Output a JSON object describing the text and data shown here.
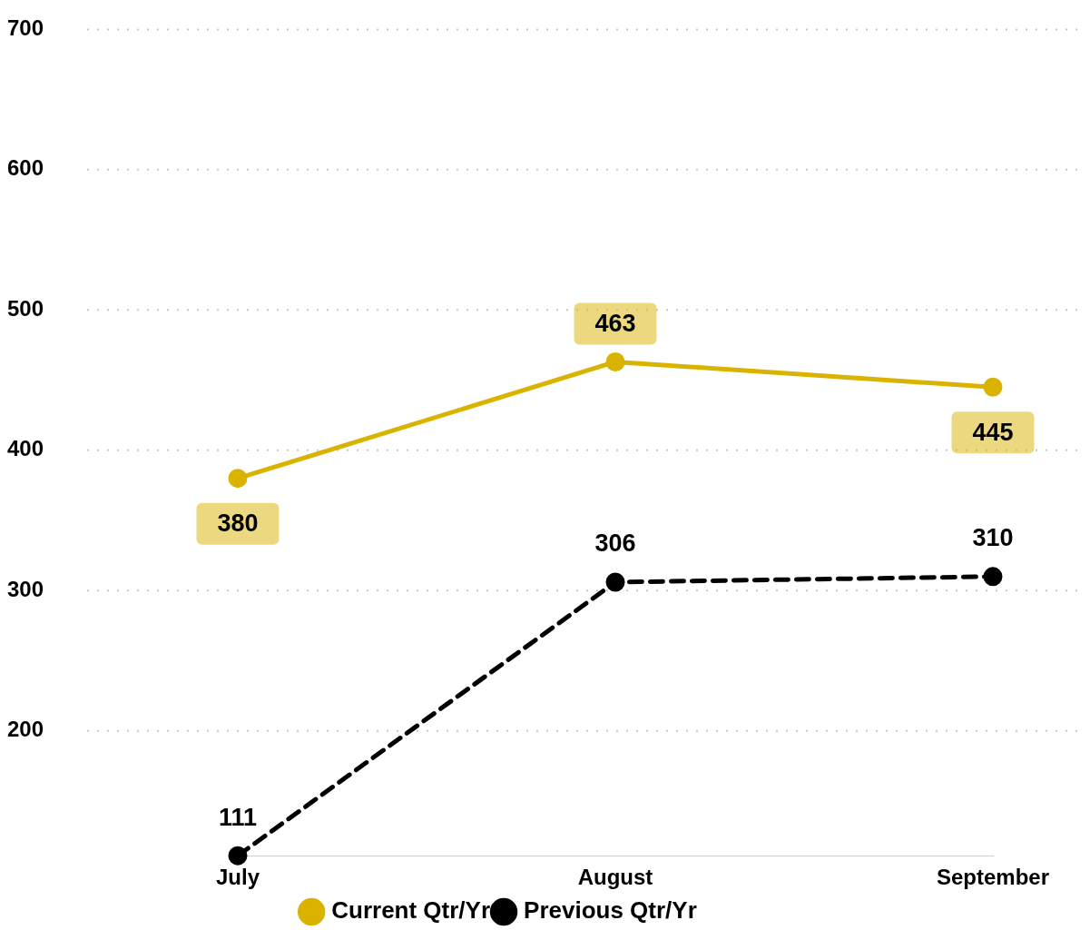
{
  "chart_data": {
    "type": "line",
    "categories": [
      "July",
      "August",
      "September"
    ],
    "series": [
      {
        "name": "Current Qtr/Yr",
        "color": "#d9b300",
        "values": [
          380,
          463,
          445
        ],
        "line_style": "solid"
      },
      {
        "name": "Previous Qtr/Yr",
        "color": "#000000",
        "values": [
          111,
          306,
          310
        ],
        "line_style": "dashed"
      }
    ],
    "ylim": [
      111,
      700
    ],
    "yticks": [
      200,
      300,
      400,
      500,
      600,
      700
    ],
    "grid": "y",
    "legend": "bottom",
    "marker": "circle",
    "data_labels": true
  }
}
